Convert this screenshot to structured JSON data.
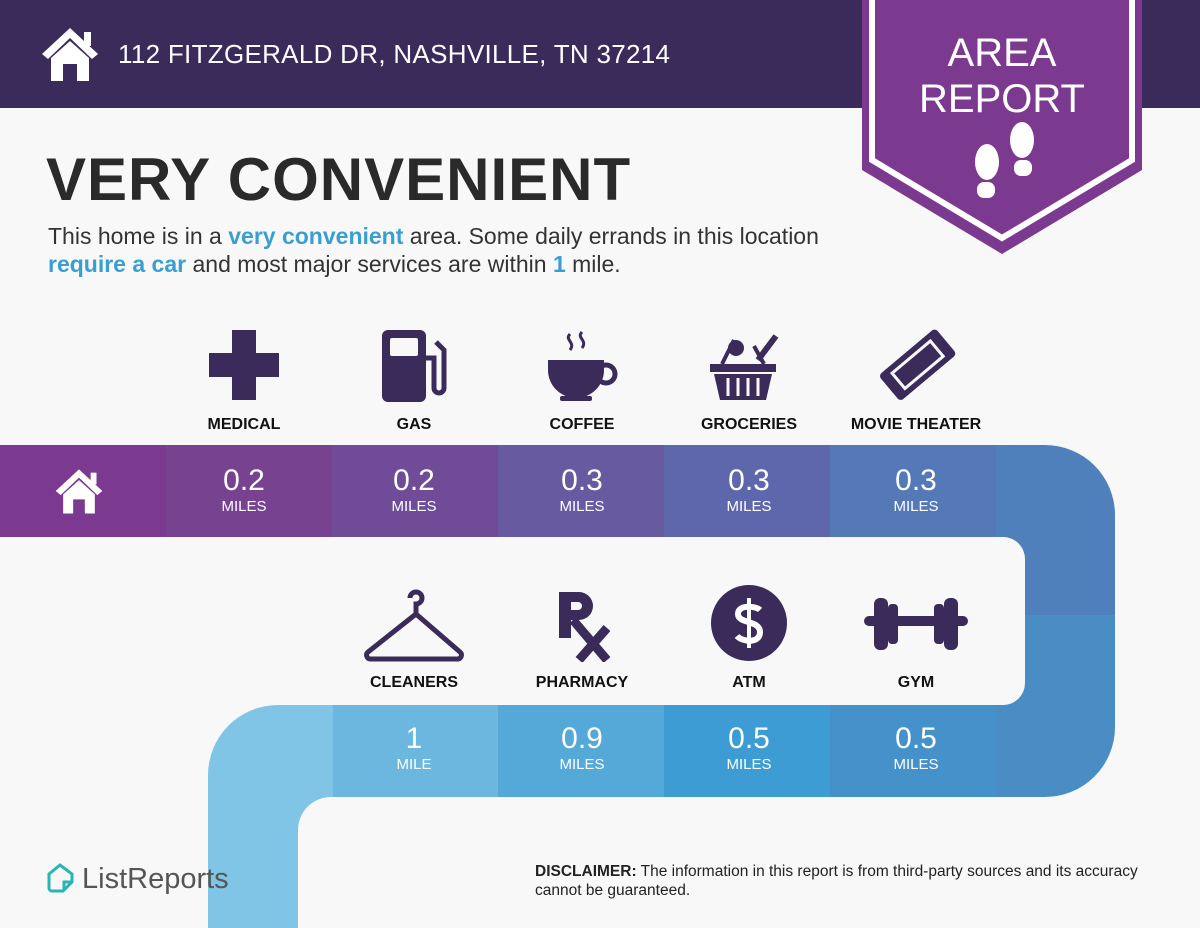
{
  "header": {
    "address": "112 FITZGERALD DR, NASHVILLE, TN 37214",
    "badge_line1": "AREA",
    "badge_line2": "REPORT"
  },
  "main": {
    "title": "VERY CONVENIENT",
    "description": {
      "p1": "This home is in a ",
      "h1": "very convenient",
      "p2": " area. Some daily errands in this location ",
      "h2": "require a car",
      "p3": " and most major services are within ",
      "h3": "1",
      "p4": " mile."
    }
  },
  "amenities_top": [
    {
      "label": "MEDICAL",
      "icon": "medical-cross-icon",
      "value": "0.2",
      "unit": "MILES"
    },
    {
      "label": "GAS",
      "icon": "gas-pump-icon",
      "value": "0.2",
      "unit": "MILES"
    },
    {
      "label": "COFFEE",
      "icon": "coffee-cup-icon",
      "value": "0.3",
      "unit": "MILES"
    },
    {
      "label": "GROCERIES",
      "icon": "grocery-basket-icon",
      "value": "0.3",
      "unit": "MILES"
    },
    {
      "label": "MOVIE THEATER",
      "icon": "movie-ticket-icon",
      "value": "0.3",
      "unit": "MILES"
    }
  ],
  "amenities_bottom": [
    {
      "label": "CLEANERS",
      "icon": "hanger-icon",
      "value": "1",
      "unit": "MILE"
    },
    {
      "label": "PHARMACY",
      "icon": "rx-icon",
      "value": "0.9",
      "unit": "MILES"
    },
    {
      "label": "ATM",
      "icon": "dollar-icon",
      "value": "0.5",
      "unit": "MILES"
    },
    {
      "label": "GYM",
      "icon": "dumbbell-icon",
      "value": "0.5",
      "unit": "MILES"
    }
  ],
  "footer": {
    "logo": "ListReports",
    "disclaimer_label": "DISCLAIMER:",
    "disclaimer_text": " The information in this report is from third-party sources and its accuracy cannot be guaranteed."
  },
  "colors": {
    "header": "#3b2b5b",
    "badge": "#7b3a8f",
    "accent": "#3a9fd0",
    "icon": "#3b2b5b"
  }
}
